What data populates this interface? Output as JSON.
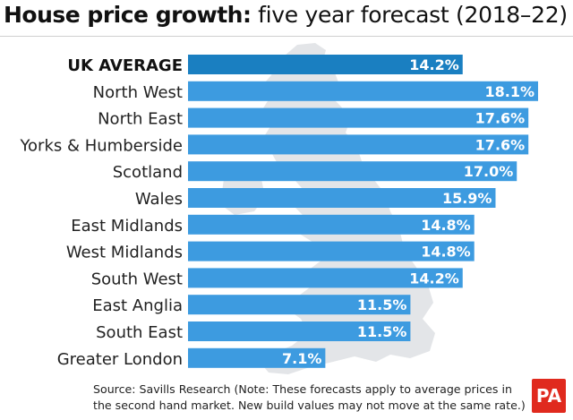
{
  "title": {
    "bold": "House price growth:",
    "light": " five year forecast (2018–22)"
  },
  "source": "Source: Savills Research (Note: These forecasts apply to average prices in the second hand market.  New build values may not move at the same rate.)",
  "logo": "PA",
  "colors": {
    "highlight_bar": "#1a7fc1",
    "bar": "#3d9be0",
    "map": "#e3e5e8"
  },
  "chart_data": {
    "type": "bar",
    "orientation": "horizontal",
    "title": "House price growth: five year forecast (2018–22)",
    "categories": [
      "UK AVERAGE",
      "North West",
      "North East",
      "Yorks & Humberside",
      "Scotland",
      "Wales",
      "East Midlands",
      "West Midlands",
      "South West",
      "East Anglia",
      "South East",
      "Greater London"
    ],
    "values": [
      14.2,
      18.1,
      17.6,
      17.6,
      17.0,
      15.9,
      14.8,
      14.8,
      14.2,
      11.5,
      11.5,
      7.1
    ],
    "value_labels": [
      "14.2%",
      "18.1%",
      "17.6%",
      "17.6%",
      "17.0%",
      "15.9%",
      "14.8%",
      "14.8%",
      "14.2%",
      "11.5%",
      "11.5%",
      "7.1%"
    ],
    "unit": "%",
    "highlight": "UK AVERAGE",
    "xlim": [
      0,
      18.1
    ]
  }
}
